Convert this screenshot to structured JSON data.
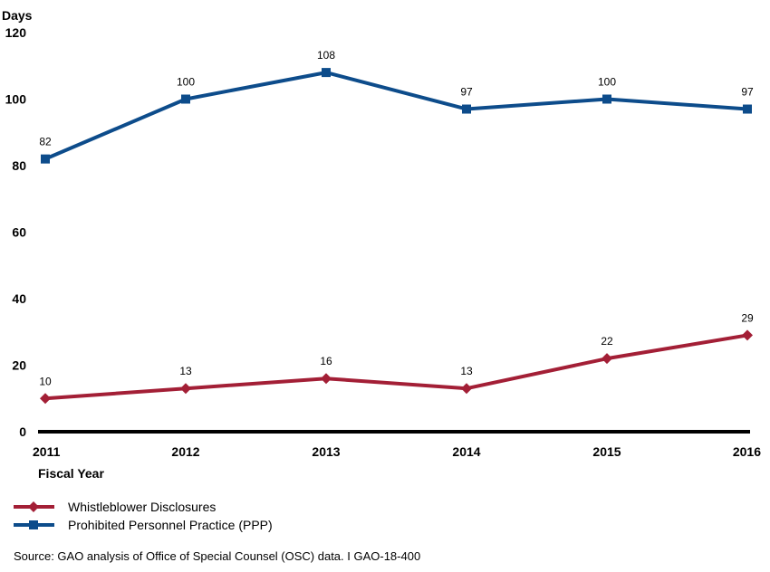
{
  "chart_data": {
    "type": "line",
    "ylabel": "Days",
    "xlabel": "Fiscal Year",
    "ylim": [
      0,
      120
    ],
    "yticks": [
      0,
      20,
      40,
      60,
      80,
      100,
      120
    ],
    "x": [
      "2011",
      "2012",
      "2013",
      "2014",
      "2015",
      "2016"
    ],
    "series": [
      {
        "name": "Prohibited Personnel Practice (PPP)",
        "marker": "square",
        "color": "#0d4c8b",
        "values": [
          82,
          100,
          108,
          97,
          100,
          97
        ]
      },
      {
        "name": "Whistleblower Disclosures",
        "marker": "diamond",
        "color": "#a31f36",
        "values": [
          10,
          13,
          16,
          13,
          22,
          29
        ]
      }
    ],
    "legend_order": [
      "Whistleblower Disclosures",
      "Prohibited Personnel Practice (PPP)"
    ],
    "legend_position": "bottom-left",
    "grid": false
  },
  "source": "Source: GAO analysis of Office of Special Counsel (OSC) data. I GAO-18-400"
}
